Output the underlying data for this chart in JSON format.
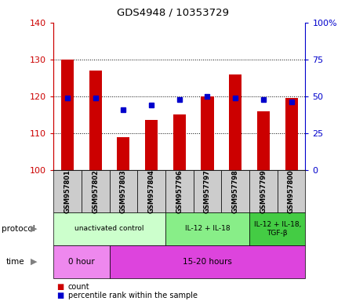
{
  "title": "GDS4948 / 10353729",
  "samples": [
    "GSM957801",
    "GSM957802",
    "GSM957803",
    "GSM957804",
    "GSM957796",
    "GSM957797",
    "GSM957798",
    "GSM957799",
    "GSM957800"
  ],
  "count_values": [
    130,
    127,
    109,
    113.5,
    115,
    120,
    126,
    116,
    119.5
  ],
  "percentile_values": [
    49,
    49,
    41,
    44,
    48,
    50,
    49,
    48,
    46
  ],
  "ylim_left": [
    100,
    140
  ],
  "ylim_right": [
    0,
    100
  ],
  "yticks_left": [
    100,
    110,
    120,
    130,
    140
  ],
  "ytick_labels_left": [
    "100",
    "110",
    "120",
    "130",
    "140"
  ],
  "yticks_right": [
    0,
    25,
    50,
    75,
    100
  ],
  "ytick_labels_right": [
    "0",
    "25",
    "50",
    "75",
    "100%"
  ],
  "bar_color": "#cc0000",
  "dot_color": "#0000cc",
  "bar_width": 0.5,
  "base_value": 100,
  "protocol_groups": [
    {
      "label": "unactivated control",
      "start": 0,
      "end": 4,
      "color": "#ccffcc"
    },
    {
      "label": "IL-12 + IL-18",
      "start": 4,
      "end": 7,
      "color": "#88ee88"
    },
    {
      "label": "IL-12 + IL-18,\nTGF-β",
      "start": 7,
      "end": 9,
      "color": "#44cc44"
    }
  ],
  "time_groups": [
    {
      "label": "0 hour",
      "start": 0,
      "end": 2,
      "color": "#ee88ee"
    },
    {
      "label": "15-20 hours",
      "start": 2,
      "end": 9,
      "color": "#dd44dd"
    }
  ],
  "sample_box_color": "#cccccc",
  "left_axis_color": "#cc0000",
  "right_axis_color": "#0000cc",
  "legend_count": "count",
  "legend_percentile": "percentile rank within the sample"
}
